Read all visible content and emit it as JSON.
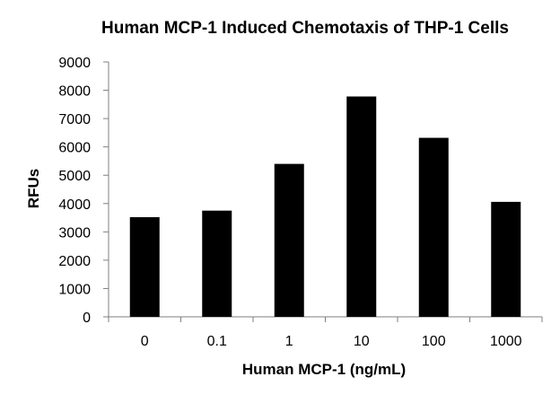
{
  "chart_data": {
    "type": "bar",
    "title": "Human MCP-1 Induced Chemotaxis of THP-1 Cells",
    "xlabel": "Human MCP-1 (ng/mL)",
    "ylabel": "RFUs",
    "categories": [
      "0",
      "0.1",
      "1",
      "10",
      "100",
      "1000"
    ],
    "values": [
      3520,
      3750,
      5400,
      7780,
      6320,
      4060
    ],
    "ylim": [
      0,
      9000
    ],
    "yticks": [
      0,
      1000,
      2000,
      3000,
      4000,
      5000,
      6000,
      7000,
      8000,
      9000
    ],
    "grid": false,
    "legend": "none",
    "bar_color": "#000000"
  }
}
